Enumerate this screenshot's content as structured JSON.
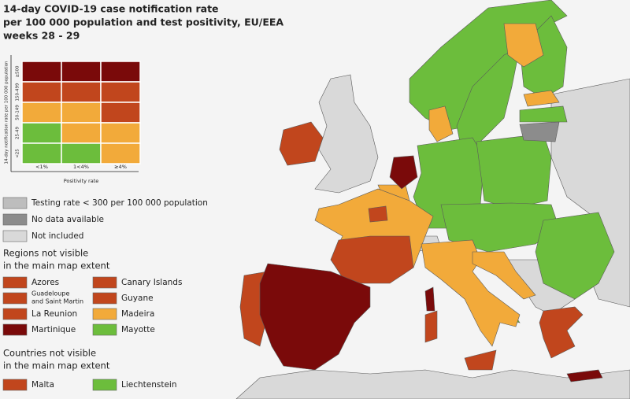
{
  "header": {
    "title_lines": [
      "14-day COVID-19 case notification rate",
      "per 100 000 population and test positivity, EU/EEA",
      "weeks 28 - 29"
    ]
  },
  "matrix": {
    "y_axis_label": "14-day notification rate per 100 000 population",
    "row_labels": [
      "≥500",
      "150-499",
      "50-149",
      "25-49",
      "<25"
    ],
    "column_labels": [
      "<1%",
      "1<4%",
      "≥4%"
    ],
    "x_axis_label": "Positivity rate"
  },
  "legend": {
    "general": [
      "Testing rate < 300 per 100 000 population",
      "No data available",
      "Not included"
    ],
    "regions_heading": [
      "Regions not visible",
      "in the main map extent"
    ],
    "regions": [
      "Azores",
      "Canary Islands",
      "Guadeloupe",
      "and Saint Martin",
      "Guyane",
      "La Reunion",
      "Madeira",
      "Martinique",
      "Mayotte"
    ],
    "countries_heading": [
      "Countries not visible",
      "in the main map extent"
    ],
    "countries": [
      "Malta",
      "Liechtenstein"
    ]
  }
}
